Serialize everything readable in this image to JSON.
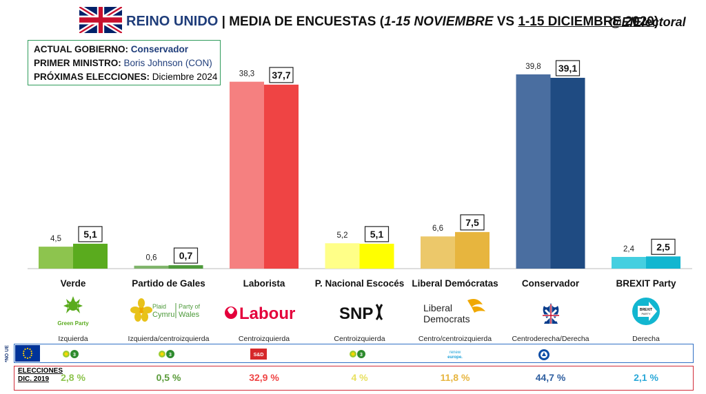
{
  "header": {
    "country": "REINO UNIDO",
    "separator": " | ",
    "subtitle_start": "MEDIA DE ENCUESTAS (",
    "period1": "1-15 NOVIEMBRE",
    "vs": " VS ",
    "period2": "1-15 DICIEMBRE 2020",
    "subtitle_end": ")",
    "handle": "@ElElectoral"
  },
  "info": {
    "gov_label": "ACTUAL GOBIERNO:",
    "gov_value": "Conservador",
    "pm_label": "PRIMER MINISTRO:",
    "pm_value": "Boris Johnson (CON)",
    "next_label": "PRÓXIMAS ELECCIONES:",
    "next_value": "Diciembre 2024"
  },
  "colors": {
    "verde": [
      "#8dc44e",
      "#5aab1e"
    ],
    "gales": [
      "#7fb46a",
      "#4d9a3a"
    ],
    "laborista": [
      "#f58080",
      "#ef4444"
    ],
    "snp": [
      "#ffff88",
      "#ffff00"
    ],
    "libdem": [
      "#ecc86a",
      "#e7b53e"
    ],
    "conservador": [
      "#4a6ea0",
      "#1f4b82"
    ],
    "brexit": [
      "#45cfe0",
      "#12b6d0"
    ]
  },
  "chart_data": {
    "type": "bar",
    "categories": [
      "Verde",
      "Partido de Gales",
      "Laborista",
      "P. Nacional Escocés",
      "Liberal Demócratas",
      "Conservador",
      "BREXIT Party"
    ],
    "series": [
      {
        "name": "1-15 NOVIEMBRE",
        "values": [
          4.5,
          0.6,
          38.3,
          5.2,
          6.6,
          39.8,
          2.4
        ],
        "labels": [
          "4,5",
          "0,6",
          "38,3",
          "5,2",
          "6,6",
          "39,8",
          "2,4"
        ]
      },
      {
        "name": "1-15 DICIEMBRE 2020",
        "values": [
          5.1,
          0.7,
          37.7,
          5.1,
          7.5,
          39.1,
          2.5
        ],
        "labels": [
          "5,1",
          "0,7",
          "37,7",
          "5,1",
          "7,5",
          "39,1",
          "2,5"
        ]
      }
    ],
    "ylim": [
      0,
      42
    ],
    "grid": false
  },
  "parties": [
    {
      "name": "Verde",
      "ideology": "Izquierda",
      "election": "2,8 %",
      "color": "#8dc44e",
      "logo_text": "Green Party"
    },
    {
      "name": "Partido de Gales",
      "ideology": "Izquierda/centroizquierda",
      "election": "0,5 %",
      "color": "#5a9b3a",
      "logo_text": "Plaid Cymru | Party of Wales"
    },
    {
      "name": "Laborista",
      "ideology": "Centroizquierda",
      "election": "32,9 %",
      "color": "#ef4444",
      "logo_text": "Labour"
    },
    {
      "name": "P. Nacional Escocés",
      "ideology": "Centroizquierda",
      "election": "4 %",
      "color": "#e8e060",
      "logo_text": "SNP"
    },
    {
      "name": "Liberal Demócratas",
      "ideology": "Centro/centroizquierda",
      "election": "11,8 %",
      "color": "#e7b53e",
      "logo_text": "Liberal Democrats"
    },
    {
      "name": "Conservador",
      "ideology": "Centroderecha/Derecha",
      "election": "44,7 %",
      "color": "#2f5fa0",
      "logo_text": ""
    },
    {
      "name": "BREXIT Party",
      "ideology": "Derecha",
      "election": "2,1 %",
      "color": "#2aa8d8",
      "logo_text": "BREXIT PARTY"
    }
  ],
  "eu_groups": [
    "greens-efa",
    "greens-efa",
    "s-and-d",
    "greens-efa",
    "renew-europe",
    "ecr",
    ""
  ],
  "eu_labels": {
    "sd": "S&D",
    "renew": "renew europe."
  },
  "rows": {
    "no_ue": "*NO UE",
    "elections_line1": "ELECCIONES",
    "elections_line2": "DIC. 2019"
  }
}
